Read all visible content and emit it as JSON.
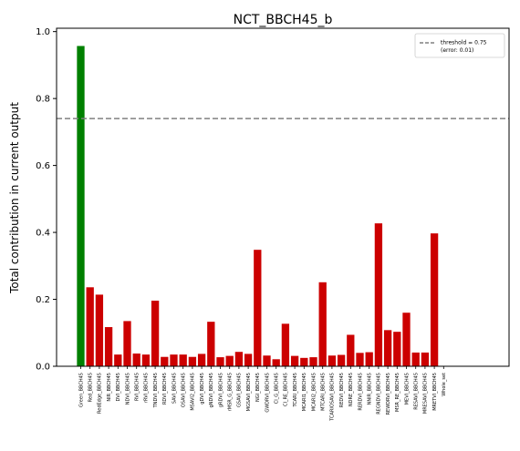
{
  "chart_data": {
    "type": "bar",
    "title": "NCT_BBCH45_b",
    "xlabel": "",
    "ylabel": "Total contribution in current output",
    "ylim": [
      0,
      1.01
    ],
    "yticks": [
      0.0,
      0.2,
      0.4,
      0.6,
      0.8,
      1.0
    ],
    "ytick_labels": [
      "0.0",
      "0.2",
      "0.4",
      "0.6",
      "0.8",
      "1.0"
    ],
    "grid": false,
    "legend_position": "top-right",
    "categories": [
      "Green_BBCH45",
      "Red_BBCH45",
      "RedEdge_BBCH45",
      "NIR_BBCH45",
      "DVI_BBCH45",
      "NDVI_BBCH45",
      "RVI_BBCH45",
      "rRVI_BBCH45",
      "TNDVI_BBCH45",
      "RDVI_BBCH45",
      "SAVI_BBCH45",
      "OSAVI_BBCH45",
      "MSAVI2_BBCH45",
      "gDVI_BBCH45",
      "gNDVI_BBCH45",
      "gRDVI_BBCH45",
      "rMSR_G_BBCH45",
      "GSAVI_BBCH45",
      "MGSAVI_BBCH45",
      "NGI_BBCH45",
      "GWDRVI_BBCH45",
      "CI_G_BBCH45",
      "CI_RE_BBCH45",
      "TCARI_BBCH45",
      "MCARI1_BBCH45",
      "MCARI2_BBCH45",
      "MTCARI_BBCH45",
      "TCARIOSAVI_BBCH45",
      "REDVI_BBCH45",
      "NDRE_BBCH45",
      "RERDVI_BBCH45",
      "NNIR_BBCH45",
      "REGNDVI_BBCH45",
      "REWDRVI_BBCH45",
      "MSR_RE_BBCH45",
      "MEVI_BBCH45",
      "RESAVI_BBCH45",
      "MRESAVI_BBCH45",
      "MRETVI_BBCH45",
      "Whole_set"
    ],
    "values": [
      0.957,
      0.236,
      0.214,
      0.117,
      0.035,
      0.135,
      0.038,
      0.035,
      0.196,
      0.028,
      0.035,
      0.035,
      0.028,
      0.037,
      0.133,
      0.027,
      0.031,
      0.043,
      0.037,
      0.348,
      0.032,
      0.021,
      0.127,
      0.031,
      0.025,
      0.027,
      0.251,
      0.032,
      0.034,
      0.094,
      0.04,
      0.042,
      0.427,
      0.108,
      0.103,
      0.16,
      0.041,
      0.041,
      0.397,
      0.0
    ],
    "highlight_index": 0,
    "threshold": {
      "value": 0.74,
      "legend_line1": "threshold = 0.75",
      "legend_line2": "(error: 0.01)"
    },
    "colors": {
      "bar": "#cc0000",
      "highlight": "#008000",
      "threshold": "#808080",
      "axis": "#000000",
      "legend_border": "#cccccc"
    }
  }
}
